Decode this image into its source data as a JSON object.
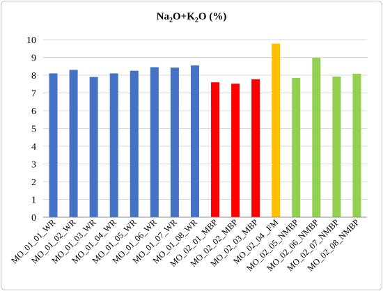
{
  "chart_data": {
    "type": "bar",
    "title": "Na₂O+K₂O (%)",
    "title_parts": {
      "a": "Na",
      "a_sub": "2",
      "b": "O+K",
      "b_sub": "2",
      "c": "O (%)"
    },
    "xlabel": "",
    "ylabel": "",
    "ylim": [
      0,
      10
    ],
    "yticks": [
      "0",
      "1",
      "2",
      "3",
      "4",
      "5",
      "6",
      "7",
      "8",
      "9",
      "10"
    ],
    "grid": true,
    "legend": "none",
    "categories": [
      "MO_01_01_WR",
      "MO_01_02_WR",
      "MO_01_03_WR",
      "MO_01_04_WR",
      "MO_01_05_WR",
      "MO_01_06_WR",
      "MO_01_07_WR",
      "MO_01_08_WR",
      "MO_02_01_MBP",
      "MO_02_02_MBP",
      "MO_02_03_MBP",
      "MO_02_04 _FM",
      "MO_02_05_NMBP",
      "MO_02_06_NMBP",
      "MO_02_07_NMBP",
      "MO_02_08_NMBP"
    ],
    "values": [
      8.1,
      8.3,
      7.9,
      8.1,
      8.25,
      8.45,
      8.43,
      8.55,
      7.6,
      7.52,
      7.77,
      9.78,
      7.85,
      8.98,
      7.92,
      8.08
    ],
    "bar_colors": [
      "#4472C4",
      "#4472C4",
      "#4472C4",
      "#4472C4",
      "#4472C4",
      "#4472C4",
      "#4472C4",
      "#4472C4",
      "#FF0000",
      "#FF0000",
      "#FF0000",
      "#FFC000",
      "#92D050",
      "#92D050",
      "#92D050",
      "#92D050"
    ]
  }
}
